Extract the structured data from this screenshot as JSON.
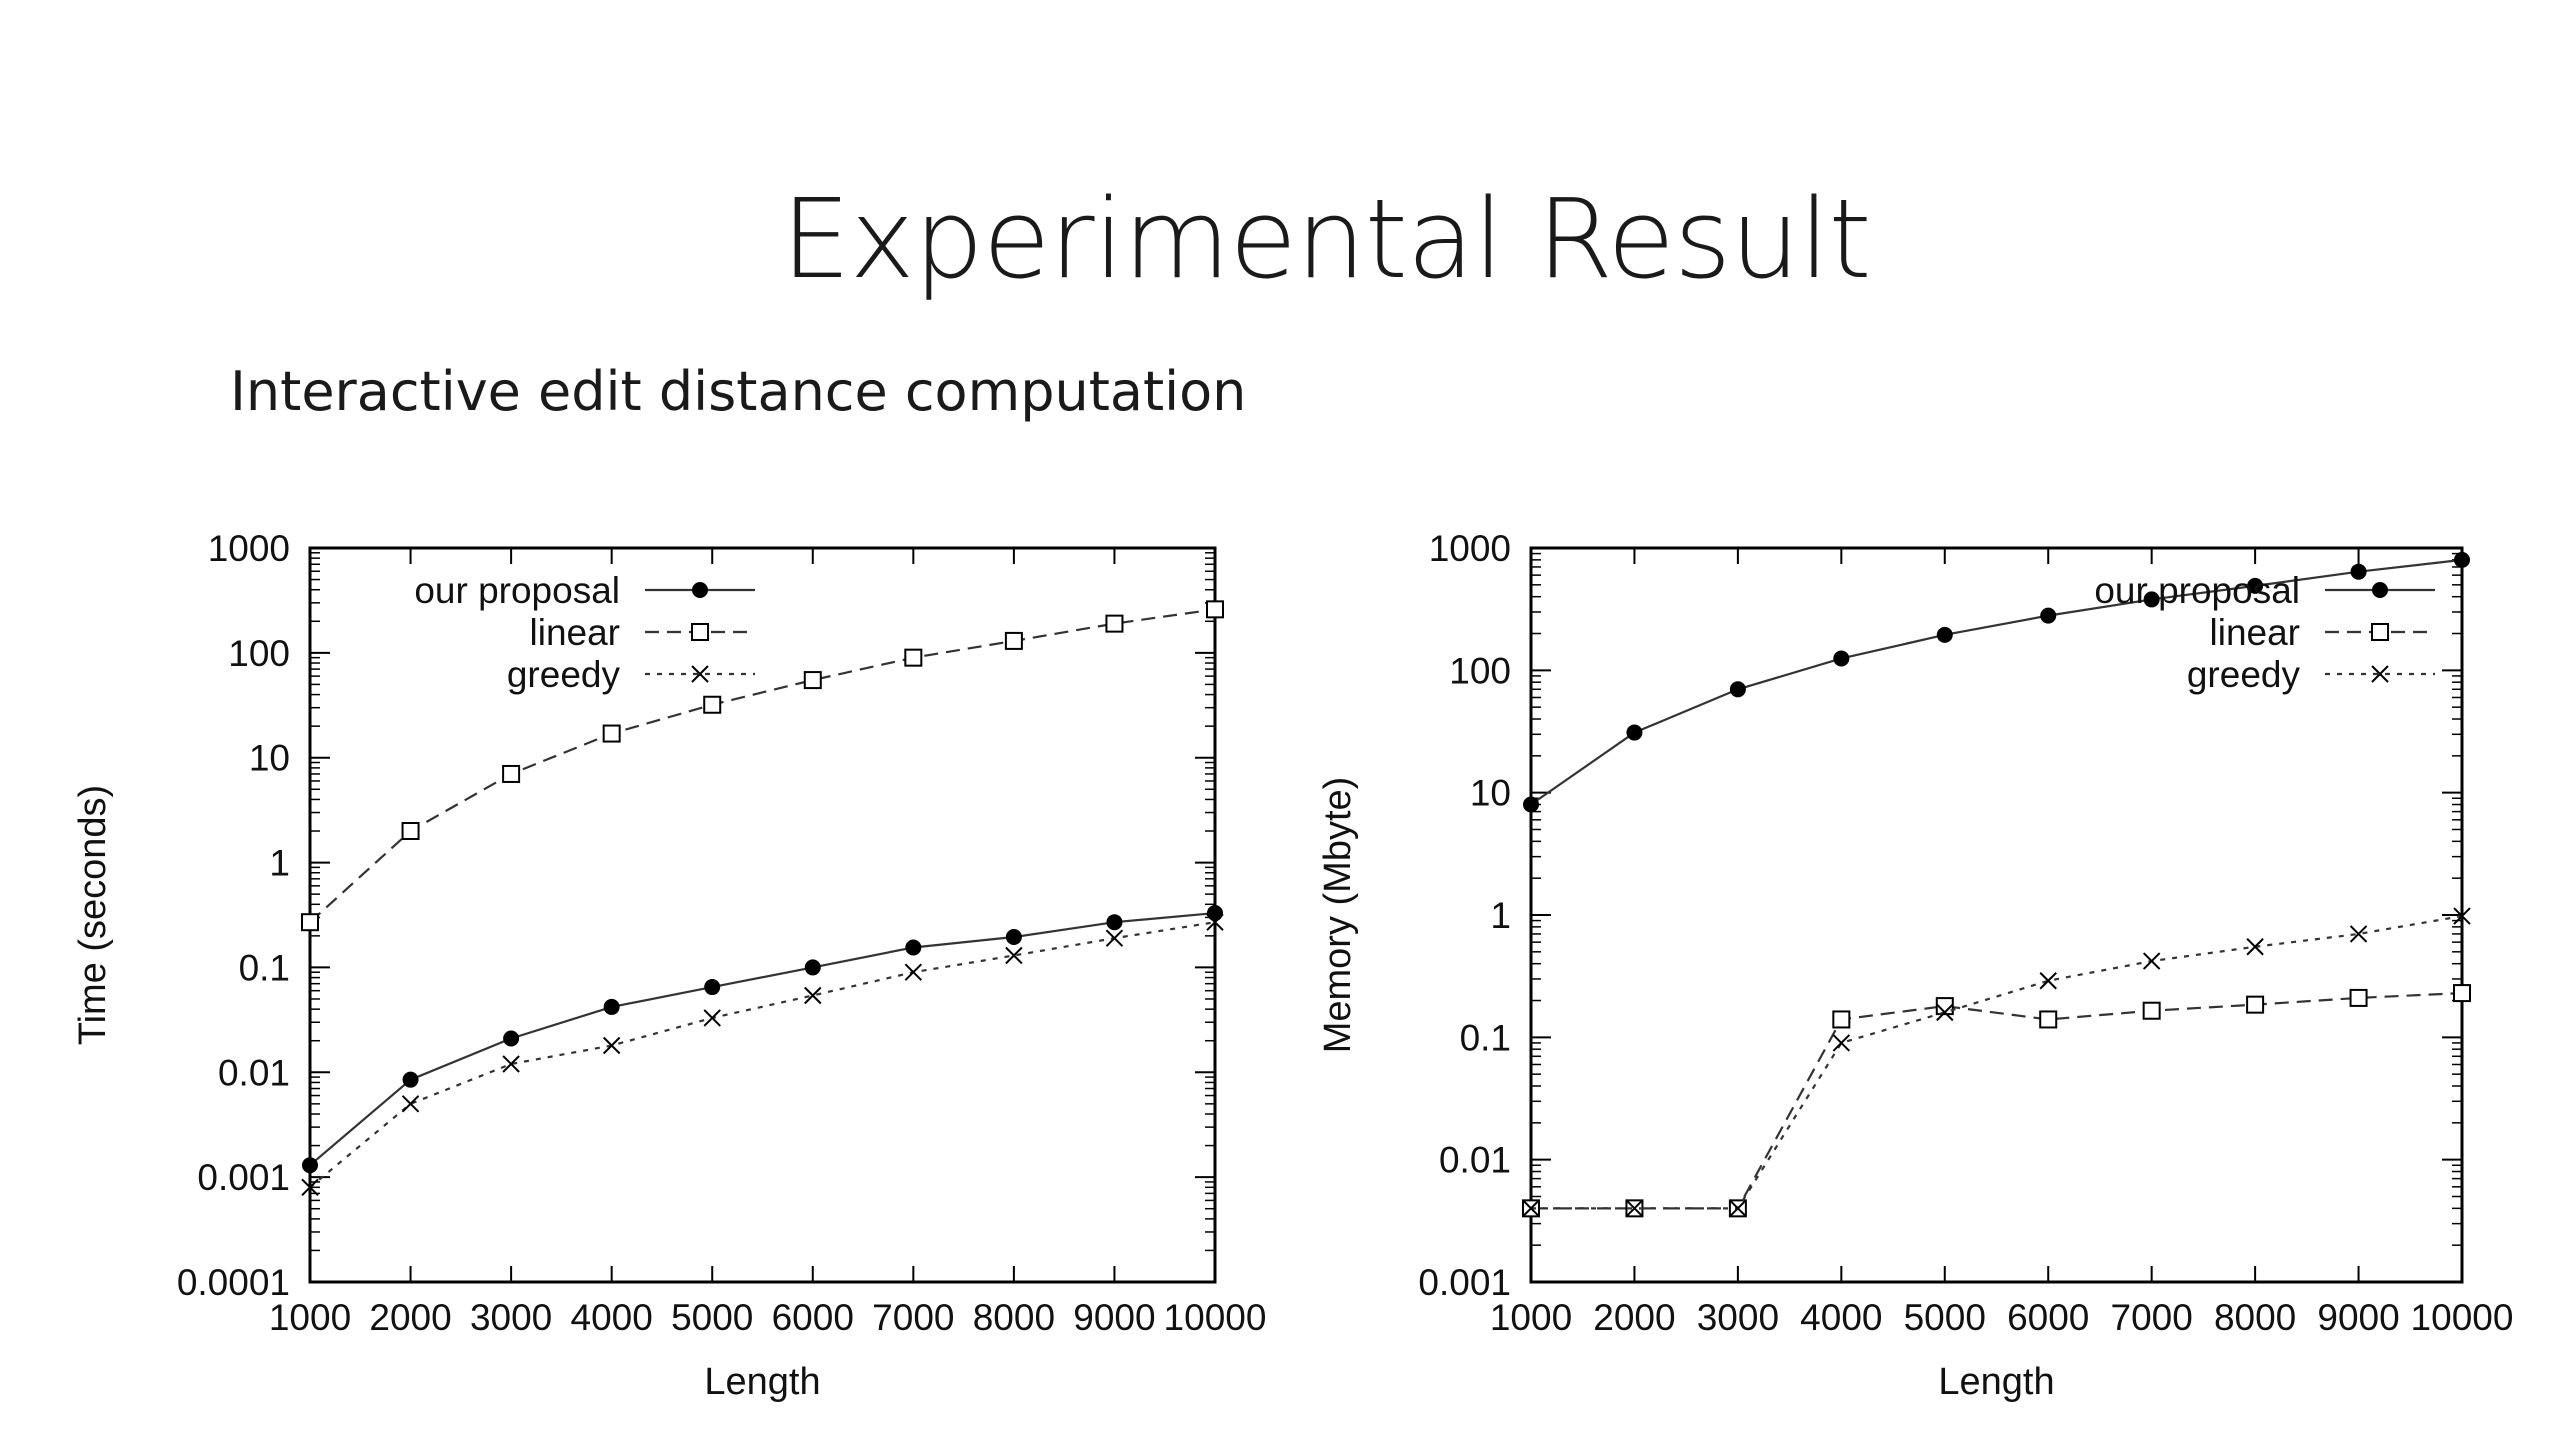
{
  "slide": {
    "title": "Experimental Result",
    "subtitle": "Interactive edit distance computation"
  },
  "colors": {
    "axis": "#000000",
    "line": "#333333",
    "background": "#ffffff"
  },
  "chart_data": [
    {
      "type": "line",
      "xlabel": "Length",
      "ylabel": "Time (seconds)",
      "x": [
        1000,
        2000,
        3000,
        4000,
        5000,
        6000,
        7000,
        8000,
        9000,
        10000
      ],
      "x_ticks": [
        "1000",
        "2000",
        "3000",
        "4000",
        "5000",
        "6000",
        "7000",
        "8000",
        "9000",
        "10000"
      ],
      "y_scale": "log",
      "ylim": [
        0.0001,
        1000
      ],
      "y_ticks": [
        "0.0001",
        "0.001",
        "0.01",
        "0.1",
        "1",
        "10",
        "100",
        "1000"
      ],
      "legend_position": "top-left",
      "series": [
        {
          "name": "our proposal",
          "style": "solid",
          "marker": "filled-circle",
          "values": [
            0.0013,
            0.0085,
            0.021,
            0.042,
            0.065,
            0.1,
            0.155,
            0.195,
            0.27,
            0.33
          ]
        },
        {
          "name": "linear",
          "style": "dashed",
          "marker": "open-square",
          "values": [
            0.27,
            2.0,
            7.0,
            17,
            32,
            55,
            90,
            130,
            190,
            260
          ]
        },
        {
          "name": "greedy",
          "style": "dotted",
          "marker": "cross",
          "values": [
            0.0008,
            0.005,
            0.012,
            0.018,
            0.033,
            0.054,
            0.09,
            0.13,
            0.19,
            0.27
          ]
        }
      ]
    },
    {
      "type": "line",
      "xlabel": "Length",
      "ylabel": "Memory (Mbyte)",
      "x": [
        1000,
        2000,
        3000,
        4000,
        5000,
        6000,
        7000,
        8000,
        9000,
        10000
      ],
      "x_ticks": [
        "1000",
        "2000",
        "3000",
        "4000",
        "5000",
        "6000",
        "7000",
        "8000",
        "9000",
        "10000"
      ],
      "y_scale": "log",
      "ylim": [
        0.001,
        1000
      ],
      "y_ticks": [
        "0.001",
        "0.01",
        "0.1",
        "1",
        "10",
        "100",
        "1000"
      ],
      "legend_position": "top-right",
      "series": [
        {
          "name": "our proposal",
          "style": "solid",
          "marker": "filled-circle",
          "values": [
            8,
            31,
            70,
            125,
            195,
            280,
            380,
            490,
            640,
            800
          ]
        },
        {
          "name": "linear",
          "style": "dashed",
          "marker": "open-square",
          "values": [
            0.004,
            0.004,
            0.004,
            0.14,
            0.18,
            0.14,
            0.165,
            0.185,
            0.21,
            0.23
          ]
        },
        {
          "name": "greedy",
          "style": "dotted",
          "marker": "cross",
          "values": [
            0.004,
            0.004,
            0.004,
            0.09,
            0.16,
            0.29,
            0.42,
            0.55,
            0.7,
            0.98
          ]
        }
      ]
    }
  ]
}
